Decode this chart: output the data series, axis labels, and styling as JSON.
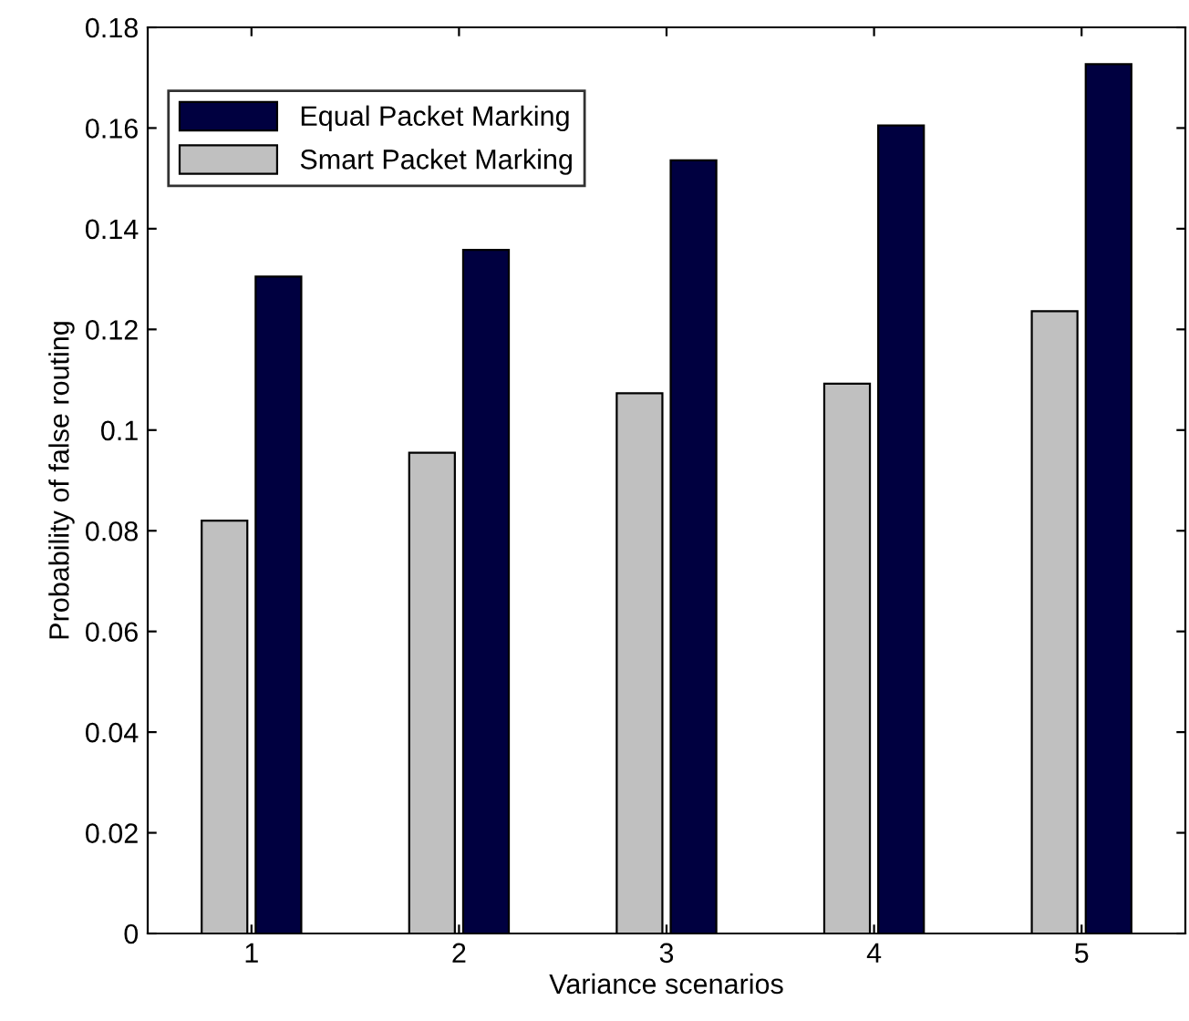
{
  "chart_data": {
    "type": "bar",
    "xlabel": "Variance scenarios",
    "ylabel": "Probability of false routing",
    "categories": [
      "1",
      "2",
      "3",
      "4",
      "5"
    ],
    "series": [
      {
        "name": "Smart Packet Marking",
        "color": "#c0c0c0",
        "values": [
          0.082,
          0.0955,
          0.1073,
          0.1092,
          0.1236
        ]
      },
      {
        "name": "Equal Packet Marking",
        "color": "#000040",
        "values": [
          0.1305,
          0.1358,
          0.1536,
          0.1605,
          0.1727
        ]
      }
    ],
    "ylim": [
      0,
      0.18
    ],
    "yticks": [
      0,
      0.02,
      0.04,
      0.06,
      0.08,
      0.1,
      0.12,
      0.14,
      0.16,
      0.18
    ],
    "grid": false,
    "legend": "top left"
  }
}
